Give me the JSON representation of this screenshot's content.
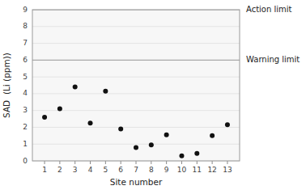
{
  "chart_data": {
    "type": "scatter",
    "x": [
      1,
      2,
      3,
      4,
      5,
      6,
      7,
      8,
      9,
      10,
      11,
      12,
      13
    ],
    "values": [
      2.6,
      3.1,
      4.4,
      2.25,
      4.15,
      1.9,
      0.8,
      0.95,
      1.55,
      0.3,
      0.45,
      1.5,
      2.15
    ],
    "color": "#111111",
    "xlabel": "Site number",
    "ylabel": "SAD  (Li (ppm))",
    "xlim": [
      0.2,
      13.8
    ],
    "ylim": [
      0,
      9
    ],
    "xticks": [
      1,
      2,
      3,
      4,
      5,
      6,
      7,
      8,
      9,
      10,
      11,
      12,
      13
    ],
    "yticks": [
      0,
      1,
      2,
      3,
      4,
      5,
      6,
      7,
      8,
      9
    ],
    "annotations": [
      {
        "text": "Action limit",
        "y": 9.0,
        "color": "#aaaaaa"
      },
      {
        "text": "Warning limit",
        "y": 6.0,
        "color": "#aaaaaa"
      }
    ]
  }
}
